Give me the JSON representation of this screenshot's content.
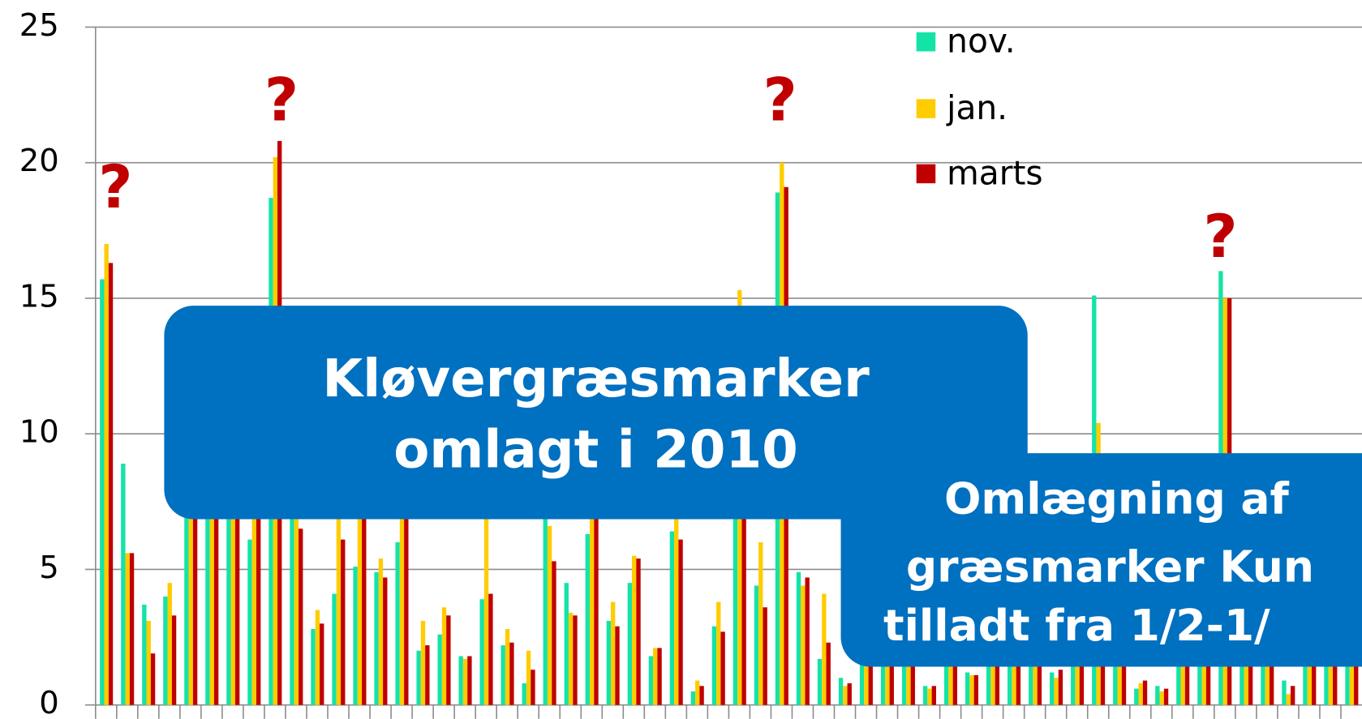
{
  "chart_data": {
    "type": "bar",
    "categories": [
      null,
      null,
      null,
      null,
      null,
      null,
      null,
      null,
      null,
      null,
      null,
      null,
      null,
      null,
      null,
      null,
      null,
      null,
      null,
      null,
      null,
      null,
      null,
      null,
      null,
      null,
      null,
      null,
      null,
      null,
      null,
      null,
      null,
      null,
      null,
      null,
      null,
      null,
      null,
      null,
      null,
      null,
      null,
      null,
      null,
      null,
      null,
      null,
      null,
      null,
      null,
      null,
      null,
      null,
      null,
      null,
      null,
      null,
      null,
      null
    ],
    "series": [
      {
        "name": "nov.",
        "color": "#14e3a8",
        "values": [
          15.7,
          8.9,
          3.7,
          4.0,
          7.5,
          8,
          8,
          6.1,
          18.7,
          8,
          2.8,
          4.1,
          5.1,
          4.9,
          6.0,
          2.0,
          2.6,
          1.8,
          3.9,
          2.2,
          0.8,
          7,
          4.5,
          6.3,
          3.1,
          4.5,
          1.8,
          6.4,
          0.5,
          2.9,
          7,
          4.4,
          18.9,
          4.9,
          1.7,
          1.0,
          2,
          2,
          2,
          0.7,
          2,
          1.2,
          2,
          2,
          2,
          1.2,
          2,
          15.1,
          2,
          0.6,
          0.7,
          2,
          2,
          16.0,
          2,
          2,
          0.9,
          2,
          2,
          2
        ]
      },
      {
        "name": "jan.",
        "color": "#ffcc00",
        "values": [
          17,
          5.6,
          3.1,
          4.5,
          7.5,
          8,
          8,
          8,
          20.2,
          7,
          3.5,
          7,
          8,
          5.4,
          7,
          3.1,
          3.6,
          1.7,
          7,
          2.8,
          2.0,
          6.6,
          3.4,
          7,
          3.8,
          5.5,
          2.1,
          7,
          0.9,
          3.8,
          15.3,
          6.0,
          20.0,
          4.4,
          4.1,
          0.7,
          2,
          2,
          2,
          0.6,
          2,
          1.1,
          2,
          2,
          2,
          1.0,
          2,
          10.4,
          2,
          0.8,
          0.5,
          2,
          2,
          15,
          2,
          2,
          0.4,
          2,
          2,
          2
        ]
      },
      {
        "name": "marts",
        "color": "#c00000",
        "values": [
          16.3,
          5.6,
          1.9,
          3.3,
          7.5,
          8,
          8,
          8,
          20.8,
          6.5,
          3.0,
          6.1,
          7,
          4.7,
          7,
          2.2,
          3.3,
          1.8,
          4.1,
          2.3,
          1.3,
          5.3,
          3.3,
          7,
          2.9,
          5.4,
          2.1,
          6.1,
          0.7,
          2.7,
          7,
          3.6,
          19.1,
          4.7,
          2.3,
          0.8,
          2,
          2,
          2,
          0.7,
          2,
          1.1,
          2,
          2,
          2,
          1.3,
          2,
          2,
          2,
          0.9,
          0.6,
          2,
          2,
          15,
          2,
          2,
          0.7,
          2,
          2,
          2
        ]
      }
    ],
    "ylim": [
      0,
      25
    ],
    "yticks": [
      0,
      5,
      10,
      15,
      20,
      25
    ],
    "grid": true,
    "annotations": [
      "?",
      "?",
      "?",
      "?"
    ],
    "callouts": [
      {
        "lines": [
          "Kløvergræsmarker",
          "omlagt i 2010"
        ]
      },
      {
        "lines": [
          "Omlægning af",
          "græsmarker Kun",
          "tilladt fra 1/2-1/"
        ]
      }
    ]
  }
}
